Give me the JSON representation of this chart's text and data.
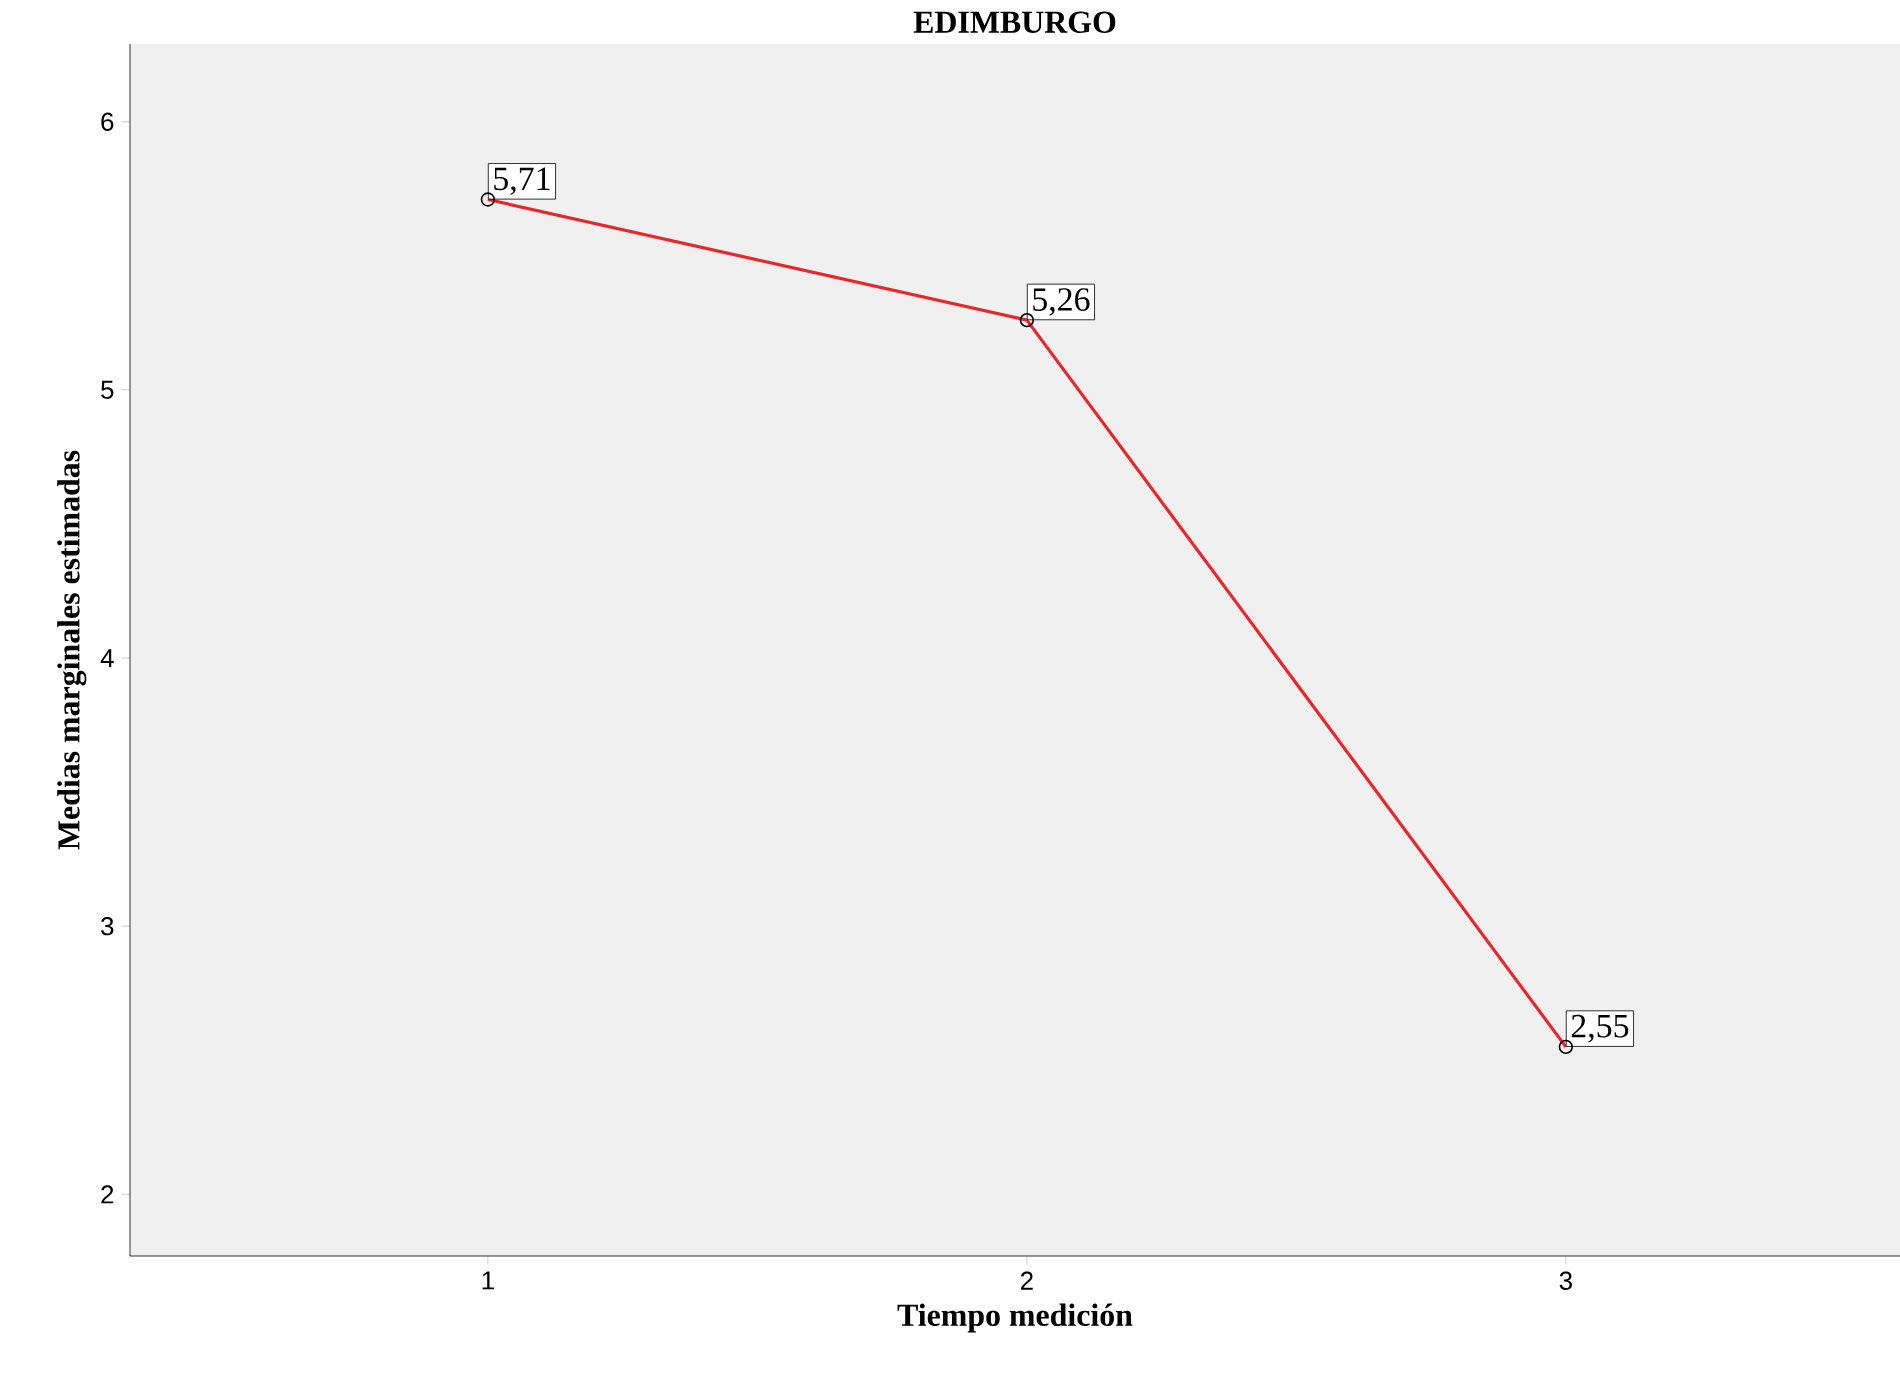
{
  "chart_data": {
    "type": "line",
    "title": "EDIMBURGO",
    "xlabel": "Tiempo medición",
    "ylabel": "Medias marginales estimadas",
    "categories": [
      "1",
      "2",
      "3"
    ],
    "series": [
      {
        "color": "#e8262c",
        "values": [
          5.71,
          5.26,
          2.55
        ],
        "value_labels": [
          "5,71",
          "5,26",
          "2,55"
        ]
      }
    ],
    "ylim": [
      1.77,
      6.29
    ],
    "yticks": [
      2,
      3,
      4,
      5,
      6
    ],
    "marker": "circle",
    "line_style": "solid",
    "grid": false
  }
}
